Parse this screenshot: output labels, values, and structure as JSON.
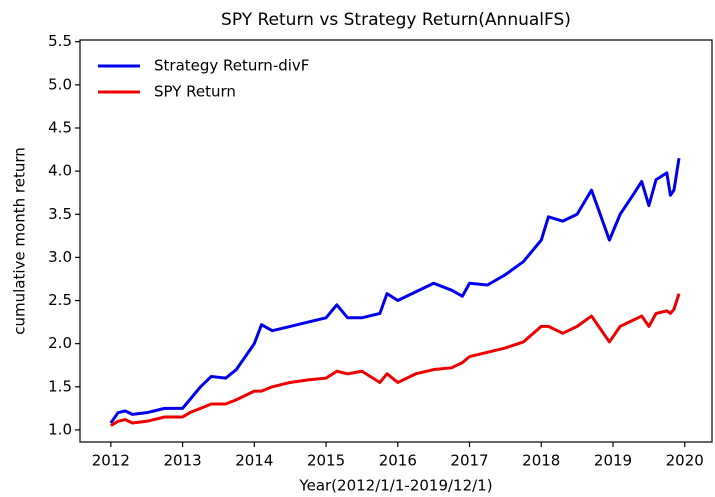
{
  "chart_data": {
    "type": "line",
    "title": "SPY Return vs Strategy Return(AnnualFS)",
    "xlabel": "Year(2012/1/1-2019/12/1)",
    "ylabel": "cumulative month return",
    "x": [
      2012,
      2012.1,
      2012.2,
      2012.3,
      2012.5,
      2012.75,
      2013,
      2013.1,
      2013.25,
      2013.4,
      2013.6,
      2013.75,
      2014,
      2014.1,
      2014.25,
      2014.5,
      2014.75,
      2015,
      2015.15,
      2015.3,
      2015.5,
      2015.75,
      2015.85,
      2016,
      2016.25,
      2016.5,
      2016.75,
      2016.9,
      2017,
      2017.25,
      2017.5,
      2017.75,
      2018,
      2018.1,
      2018.3,
      2018.5,
      2018.7,
      2018.8,
      2018.95,
      2019.1,
      2019.3,
      2019.4,
      2019.5,
      2019.6,
      2019.75,
      2019.8,
      2019.85,
      2019.92
    ],
    "series": [
      {
        "name": "Strategy Return-divF",
        "color": "#0000ee",
        "values": [
          1.08,
          1.2,
          1.22,
          1.18,
          1.2,
          1.25,
          1.25,
          1.35,
          1.5,
          1.62,
          1.6,
          1.7,
          2.0,
          2.22,
          2.15,
          2.2,
          2.25,
          2.3,
          2.45,
          2.3,
          2.3,
          2.35,
          2.58,
          2.5,
          2.6,
          2.7,
          2.62,
          2.55,
          2.7,
          2.68,
          2.8,
          2.95,
          3.2,
          3.47,
          3.42,
          3.5,
          3.78,
          3.55,
          3.2,
          3.5,
          3.75,
          3.88,
          3.6,
          3.9,
          3.98,
          3.72,
          3.78,
          4.15
        ]
      },
      {
        "name": "SPY Return",
        "color": "#ee0000",
        "values": [
          1.05,
          1.1,
          1.12,
          1.08,
          1.1,
          1.15,
          1.15,
          1.2,
          1.25,
          1.3,
          1.3,
          1.35,
          1.45,
          1.45,
          1.5,
          1.55,
          1.58,
          1.6,
          1.68,
          1.65,
          1.68,
          1.55,
          1.65,
          1.55,
          1.65,
          1.7,
          1.72,
          1.78,
          1.85,
          1.9,
          1.95,
          2.02,
          2.2,
          2.2,
          2.12,
          2.2,
          2.32,
          2.2,
          2.02,
          2.2,
          2.28,
          2.32,
          2.2,
          2.35,
          2.38,
          2.35,
          2.4,
          2.58
        ]
      }
    ],
    "xlim": [
      2011.57,
      2020.38
    ],
    "xticks": [
      2012,
      2013,
      2014,
      2015,
      2016,
      2017,
      2018,
      2019,
      2020
    ],
    "ylim": [
      0.86,
      5.52
    ],
    "yticks": [
      {
        "value": 1,
        "label": "1.0"
      },
      1.5,
      {
        "value": 2,
        "label": "2.0"
      },
      2.5,
      {
        "value": 3,
        "label": "3.0"
      },
      3.5,
      {
        "value": 4,
        "label": "4.0"
      },
      4.5,
      {
        "value": 5,
        "label": "5.0"
      },
      5.5
    ],
    "legend": "upper left"
  }
}
